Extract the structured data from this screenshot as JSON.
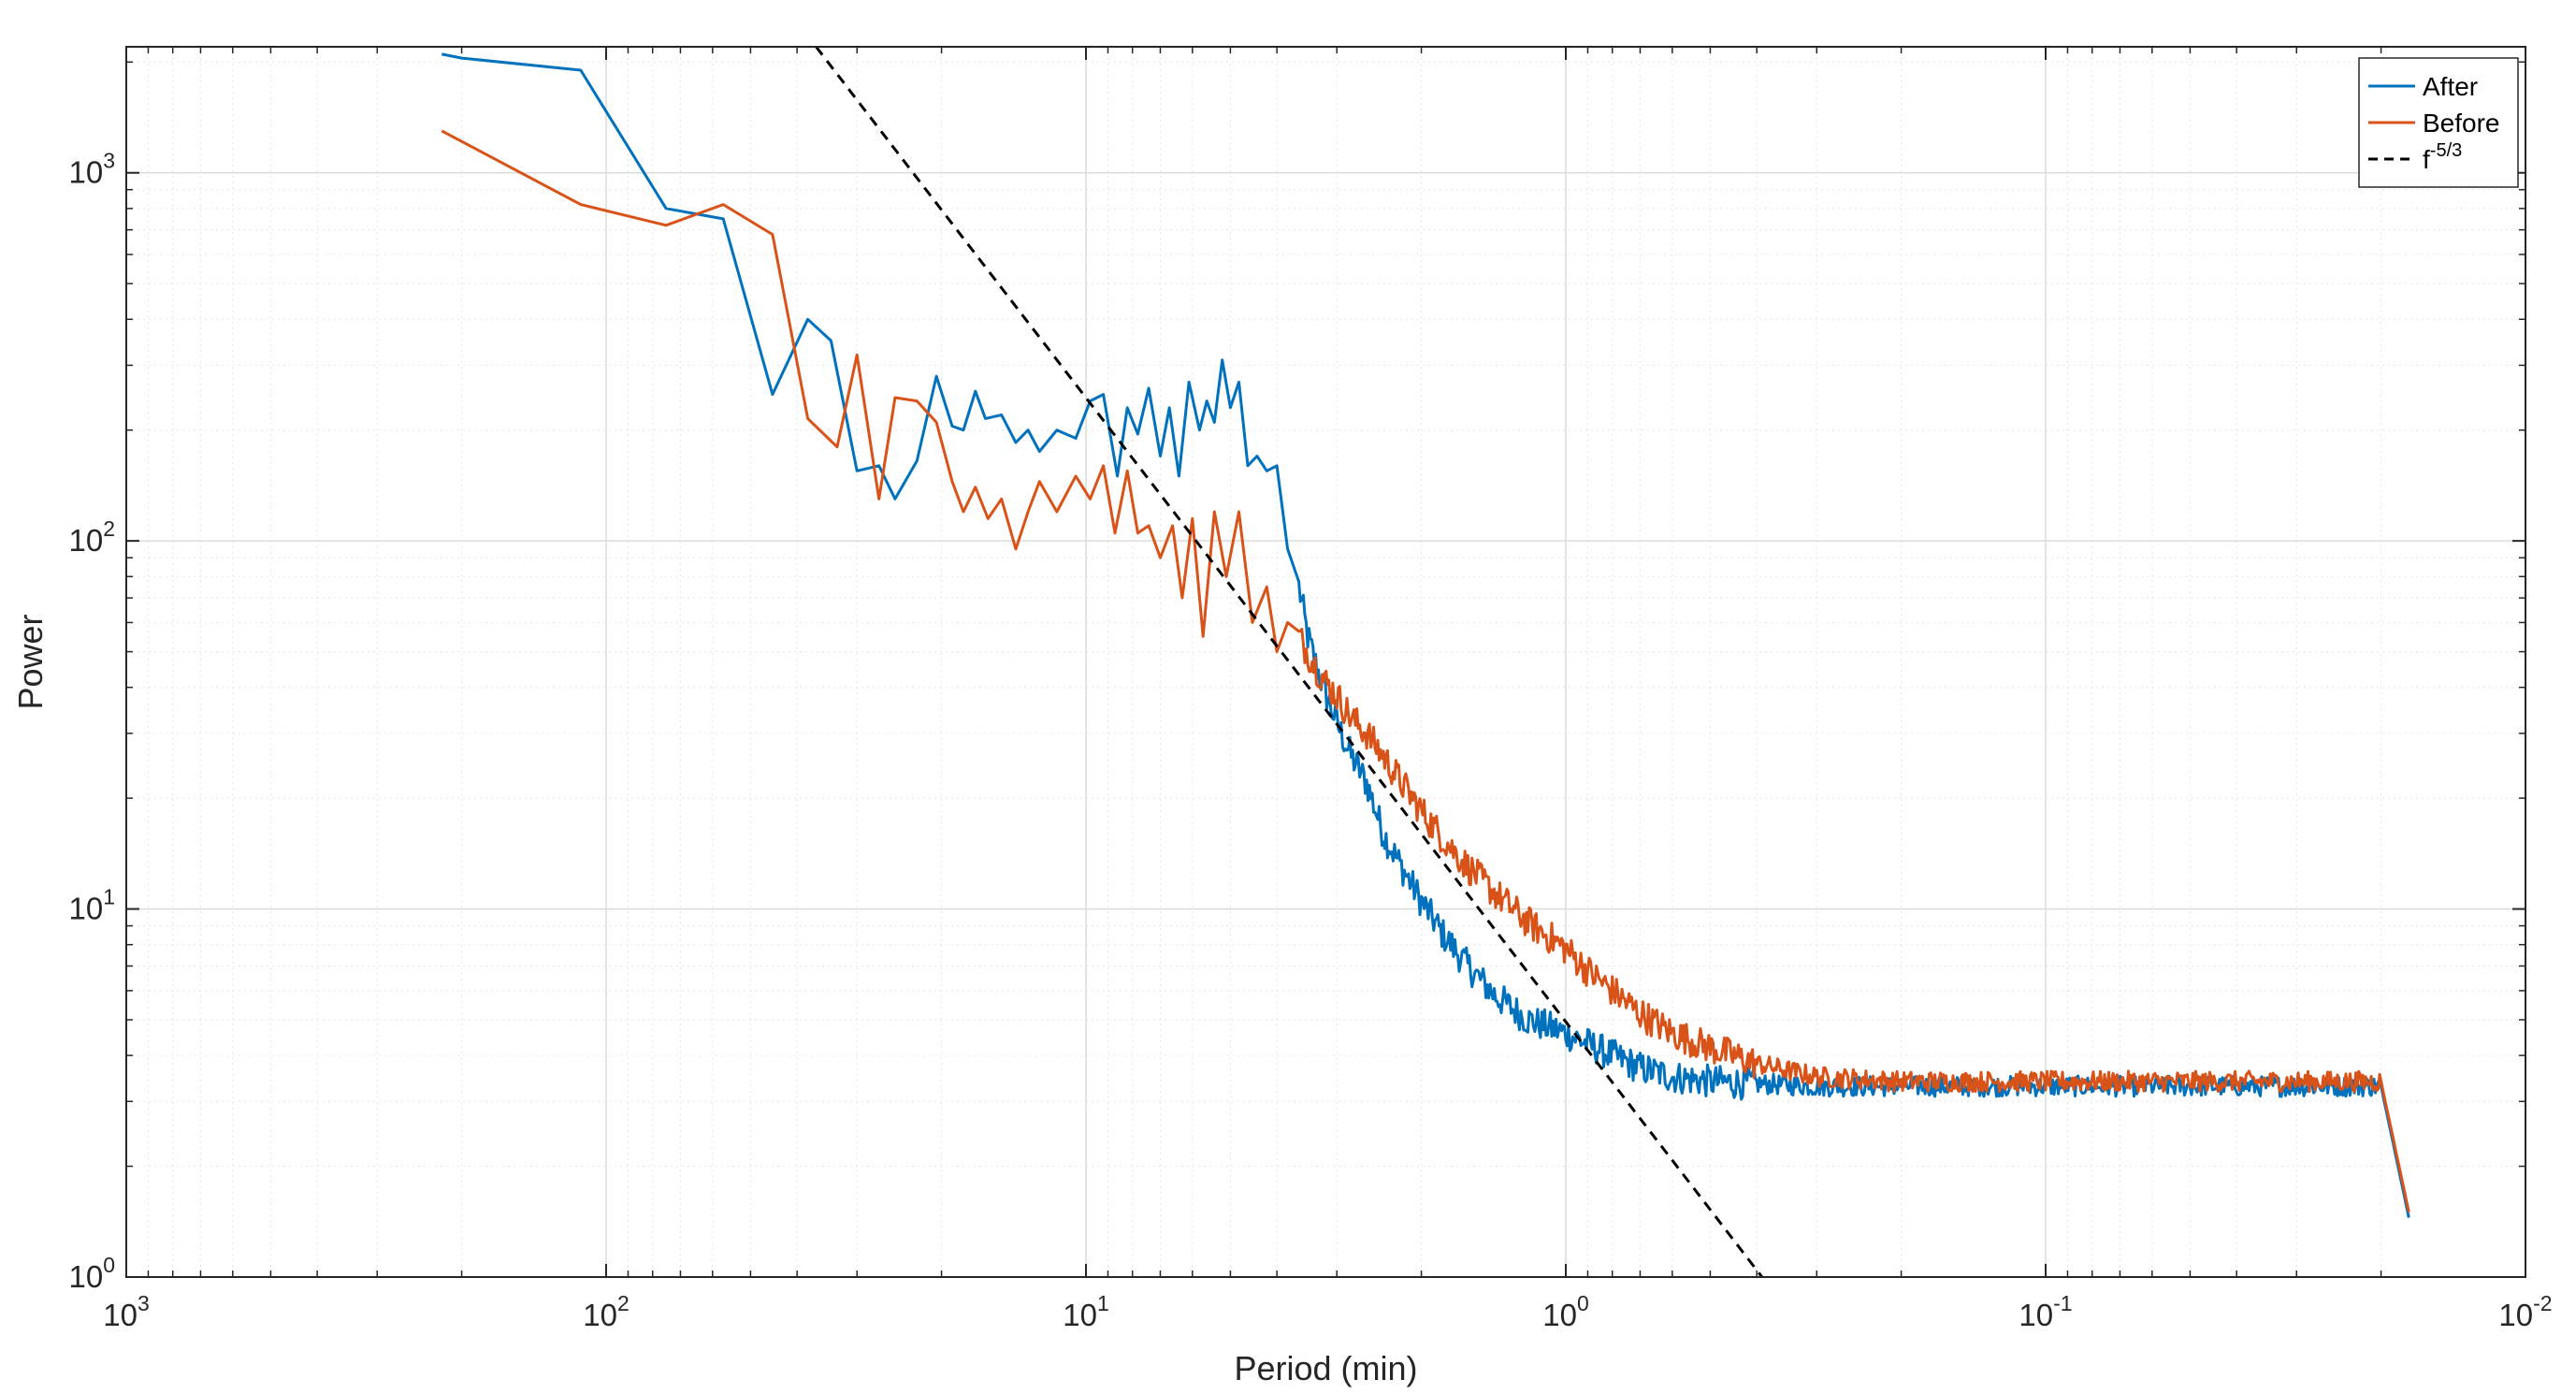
{
  "chart_data": {
    "type": "line",
    "xlabel": "Period (min)",
    "ylabel": "Power",
    "x_scale": "log",
    "y_scale": "log",
    "x_reversed": true,
    "xlim": [
      1000,
      0.01
    ],
    "ylim": [
      1,
      2200
    ],
    "grid": true,
    "legend_placement": "top-right",
    "x_ticks": [
      {
        "base": "10",
        "exp": "3",
        "value": 1000
      },
      {
        "base": "10",
        "exp": "2",
        "value": 100
      },
      {
        "base": "10",
        "exp": "1",
        "value": 10
      },
      {
        "base": "10",
        "exp": "0",
        "value": 1
      },
      {
        "base": "10",
        "exp": "-1",
        "value": 0.1
      },
      {
        "base": "10",
        "exp": "-2",
        "value": 0.01
      }
    ],
    "y_ticks": [
      {
        "base": "10",
        "exp": "0",
        "value": 1
      },
      {
        "base": "10",
        "exp": "1",
        "value": 10
      },
      {
        "base": "10",
        "exp": "2",
        "value": 100
      },
      {
        "base": "10",
        "exp": "3",
        "value": 1000
      }
    ],
    "series": [
      {
        "name": "After",
        "color": "#0072BD",
        "style": "solid",
        "noise_floor": 3.3,
        "x": [
          220,
          200,
          113,
          75,
          57,
          45,
          38,
          34,
          30,
          27,
          25,
          22.5,
          20.5,
          19,
          18,
          17,
          16.2,
          15,
          14,
          13.2,
          12.5,
          11.5,
          10.5,
          9.8,
          9.2,
          8.6,
          8.2,
          7.8,
          7.4,
          7.0,
          6.7,
          6.4,
          6.1,
          5.8,
          5.6,
          5.4,
          5.2,
          5.0,
          4.8,
          4.6,
          4.4,
          4.2,
          4.0,
          3.8,
          3.6,
          3.45,
          3.3,
          3.15,
          3.0,
          2.8,
          2.6,
          2.4,
          2.2,
          2.0,
          1.8,
          1.6,
          1.4,
          1.2,
          1.0,
          0.9,
          0.8,
          0.7,
          0.6,
          0.5,
          0.4,
          0.3,
          0.2,
          0.1,
          0.05,
          0.02,
          0.0175
        ],
        "y": [
          2100,
          2050,
          1900,
          800,
          750,
          250,
          400,
          350,
          155,
          160,
          130,
          165,
          280,
          205,
          200,
          255,
          215,
          220,
          185,
          200,
          175,
          200,
          190,
          240,
          250,
          150,
          230,
          195,
          260,
          170,
          230,
          150,
          270,
          200,
          240,
          210,
          310,
          230,
          270,
          160,
          170,
          155,
          160,
          95,
          75,
          55,
          45,
          38,
          32,
          26,
          22,
          16,
          13,
          10.5,
          8.5,
          7.0,
          5.8,
          5.0,
          4.6,
          4.3,
          4.0,
          3.7,
          3.5,
          3.4,
          3.35,
          3.3,
          3.3,
          3.3,
          3.3,
          3.3,
          1.45
        ]
      },
      {
        "name": "Before",
        "color": "#D95319",
        "style": "solid",
        "noise_floor": 3.4,
        "x": [
          220,
          113,
          75,
          57,
          45,
          38,
          33,
          30,
          27,
          25,
          22.5,
          20.5,
          19,
          18,
          17,
          16,
          15,
          14,
          13.2,
          12.5,
          11.5,
          10.5,
          9.8,
          9.2,
          8.7,
          8.2,
          7.8,
          7.4,
          7.0,
          6.6,
          6.3,
          6.0,
          5.7,
          5.4,
          5.1,
          4.8,
          4.5,
          4.2,
          4.0,
          3.8,
          3.6,
          3.4,
          3.2,
          3.0,
          2.8,
          2.6,
          2.4,
          2.2,
          2.0,
          1.8,
          1.6,
          1.4,
          1.2,
          1.0,
          0.9,
          0.8,
          0.7,
          0.6,
          0.5,
          0.4,
          0.3,
          0.2,
          0.1,
          0.05,
          0.02,
          0.0175
        ],
        "y": [
          1300,
          820,
          720,
          820,
          680,
          215,
          180,
          320,
          130,
          245,
          240,
          210,
          145,
          120,
          140,
          115,
          130,
          95,
          120,
          145,
          120,
          150,
          130,
          160,
          105,
          155,
          105,
          110,
          90,
          110,
          70,
          115,
          55,
          120,
          80,
          120,
          60,
          75,
          50,
          60,
          55,
          48,
          42,
          38,
          33,
          30,
          26,
          22,
          18.5,
          15.5,
          13,
          11,
          9.2,
          7.8,
          6.8,
          6.0,
          5.2,
          4.6,
          4.2,
          3.8,
          3.5,
          3.4,
          3.4,
          3.4,
          3.4,
          1.5
        ]
      },
      {
        "name": "f^{-5/3}",
        "color": "#000000",
        "style": "dashed",
        "x": [
          36.5,
          0.39
        ],
        "y": [
          2200,
          1
        ]
      }
    ],
    "legend": [
      {
        "label_main": "After",
        "label_sup": "",
        "color": "#0072BD",
        "style": "solid"
      },
      {
        "label_main": "Before",
        "label_sup": "",
        "color": "#D95319",
        "style": "solid"
      },
      {
        "label_main": "f",
        "label_sup": "-5/3",
        "color": "#000000",
        "style": "dashed"
      }
    ]
  }
}
